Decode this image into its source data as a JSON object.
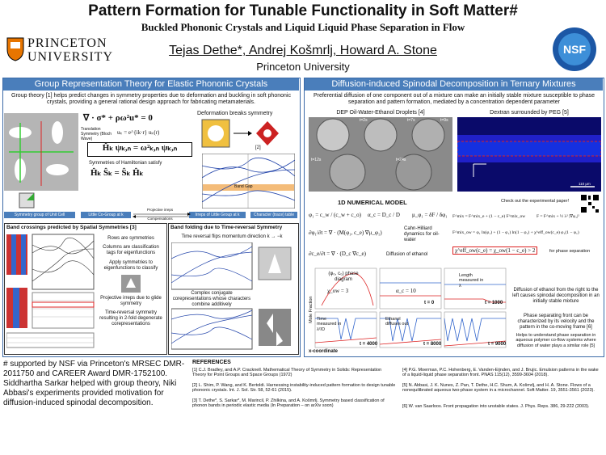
{
  "header": {
    "title": "Pattern Formation for Tunable Functionality in Soft Matter#",
    "subtitle": "Buckled Phononic Crystals and Liquid Liquid Phase Separation in Flow",
    "logo_line1": "PRINCETON",
    "logo_line2": "UNIVERSITY",
    "authors": "Tejas Dethe*, Andrej Košmrlj, Howard A. Stone",
    "affiliation": "Princeton University",
    "nsf": "NSF"
  },
  "left_panel": {
    "heading": "Group Representation Theory for Elastic Phononic Crystals",
    "intro": "Group theory [1] helps predict changes in symmetry properties due to deformation and buckling in soft phononic crystals, providing a general rational design approach for fabricating metamaterials.",
    "equation": "∇ · σ* + ρω²u* = 0",
    "translation": "Translation Symmetry (Bloch Wave)",
    "bloch": "uₖ = e^{ik·r} uₖ(r)",
    "eigen": "Ĥₖ ψₖ,ₙ = ω²ₖ,ₙ ψₖ,ₙ",
    "sym_label": "Symmetries of Hamiltonian satisfy",
    "commute": "Ĥₖ Ŝₖ = Ŝₖ Ĥₖ",
    "deform": "Deformation breaks symmetry",
    "ref2": "[2]",
    "band_gap": "Band Gap",
    "flow": [
      "Symmetry group of Unit Cell",
      "Little Co-Group at k",
      "Irreps of Little Group at k",
      "Character (trace) table"
    ],
    "flow_labels": [
      "Projective irreps",
      "Compensations"
    ],
    "box1": {
      "heading": "Band crossings predicted by Spatial Symmetries [3]",
      "notes": [
        "Rows are symmetries",
        "Columns are classification tags for eigenfunctions",
        "Apply symmetries to eigenfunctions to classify",
        "Projective irreps due to glide symmetry",
        "Time-reversal symmetry resulting in 2-fold degenerate corepresentations"
      ]
    },
    "box2": {
      "heading": "Band folding due to Time-reversal Symmetry",
      "notes": [
        "Time reversal flips momentum direction k → −k",
        "Complex conjugate corepresentations whose characters combine additively"
      ]
    }
  },
  "right_panel": {
    "heading": "Diffusion-induced Spinodal Decomposition in Ternary Mixtures",
    "intro": "Preferential diffusion of one component out of a mixture can make an initially stable mixture susceptible to phase separation and pattern formation, mediated by a concentration dependent parameter",
    "img1_title": "DEP Oil-Water-Ethanol Droplets [4]",
    "img1_times": [
      "t=2s",
      "t=7s",
      "t=9s",
      "t=12s",
      "t=24s"
    ],
    "img2_title": "Dextran surrounded by PEG [5]",
    "scale": "110 μm",
    "model_heading": "1D NUMERICAL MODEL",
    "equations": [
      "φ₁ = c_w / (c_w + c_o)",
      "α_c = D_c / D",
      "μ_φ₁ = δF / δφ₁",
      "∂φ₁/∂t = ∇ · (M(φ₁, c_e) ∇μ_φ₁)",
      "∂c_e/∂t = ∇ · (D_c ∇c_e)"
    ],
    "eq_right": [
      "F^mix = F^mix_e + (1 − c_e) F^mix_ow",
      "F = F^mix + ½ λ² |∇φ₁|²",
      "F^mix_ow = φ₁ ln(φ₁) + (1 − φ₁) ln(1 − φ₁) + χ^eff_ow(c_e) φ₁(1 − φ₁)",
      "χ^eff_ow(c_e) = χ_ow(1 − c_e) > 2"
    ],
    "eq_notes": [
      "Cahn-Hilliard dynamics for oil-water",
      "Diffusion of ethanol",
      "for phase separation"
    ],
    "qr_note": "Check out the experimental paper!",
    "plot_labels": [
      "(φ₀, c₀) phase diagram",
      "χ_ow = 3",
      "α_c = 10",
      "t = 0",
      "Length measured in λ",
      "t = 1000",
      "Time measured in λ²/D",
      "Ethanol diffuses out",
      "t = 4000",
      "t = 8000",
      "t = 9000"
    ],
    "y_label": "Mole Fraction",
    "x_label": "x-coordinate",
    "notes": [
      "Diffusion of ethanol from the right to the left causes spinodal decomposition in an initially stable mixture",
      "Phase separating front can be characterized by its velocity and the pattern in the co-moving frame [6]",
      "Helps to understand phase separation in aqueous polymer co-flow systems where diffusion of water plays a similar role [5]"
    ]
  },
  "footer": {
    "support": "# supported by NSF via Princeton's MRSEC DMR-2011750 and CAREER Award DMR-1752100. Siddhartha Sarkar helped with group theory, Niki Abbasi's experiments provided motivation for diffusion-induced spinodal decomposition.",
    "references_heading": "REFERENCES",
    "references": [
      "[1] C.J. Bradley, and A.P. Cracknell. Mathematical Theory of Symmetry in Solids: Representation Theory for Point Groups and Space Groups (1972)",
      "[2] L. Shim, P. Wang, and K. Bertoldi. Harnessing instability-induced pattern formation to design tunable phononic crystals. Int. J. Sol. Str. 58, 52-61 (2015).",
      "[3] T. Dethe*, S. Sarkar*, M. Marincil, P. Zhilkina, and A. Košmrlj. Symmetry based classification of phonon bands in periodic elastic media (In Preparation – on arXiv soon)",
      "[4] P.G. Moerman, P.C. Hohenberg, E. Vanden-Eijnden, and J. Brujic. Emulsion patterns in the wake of a liquid-liquid phase separation front. PNAS 115(12), 3599-3604 (2018).",
      "[5] N. Abbasi, J. K. Nunes, Z. Pan, T. Dethe, H.C. Shum, A. Košmrlj, and H. A. Stone. Flows of a nonequilibrated aqueous two-phase system in a microchannel. Soft Matter. 19, 3551-3561 (2023).",
      "[6] W. van Saarloos. Front propagation into unstable states. J. Phys. Reps. 386, 29-222 (2003)."
    ]
  }
}
